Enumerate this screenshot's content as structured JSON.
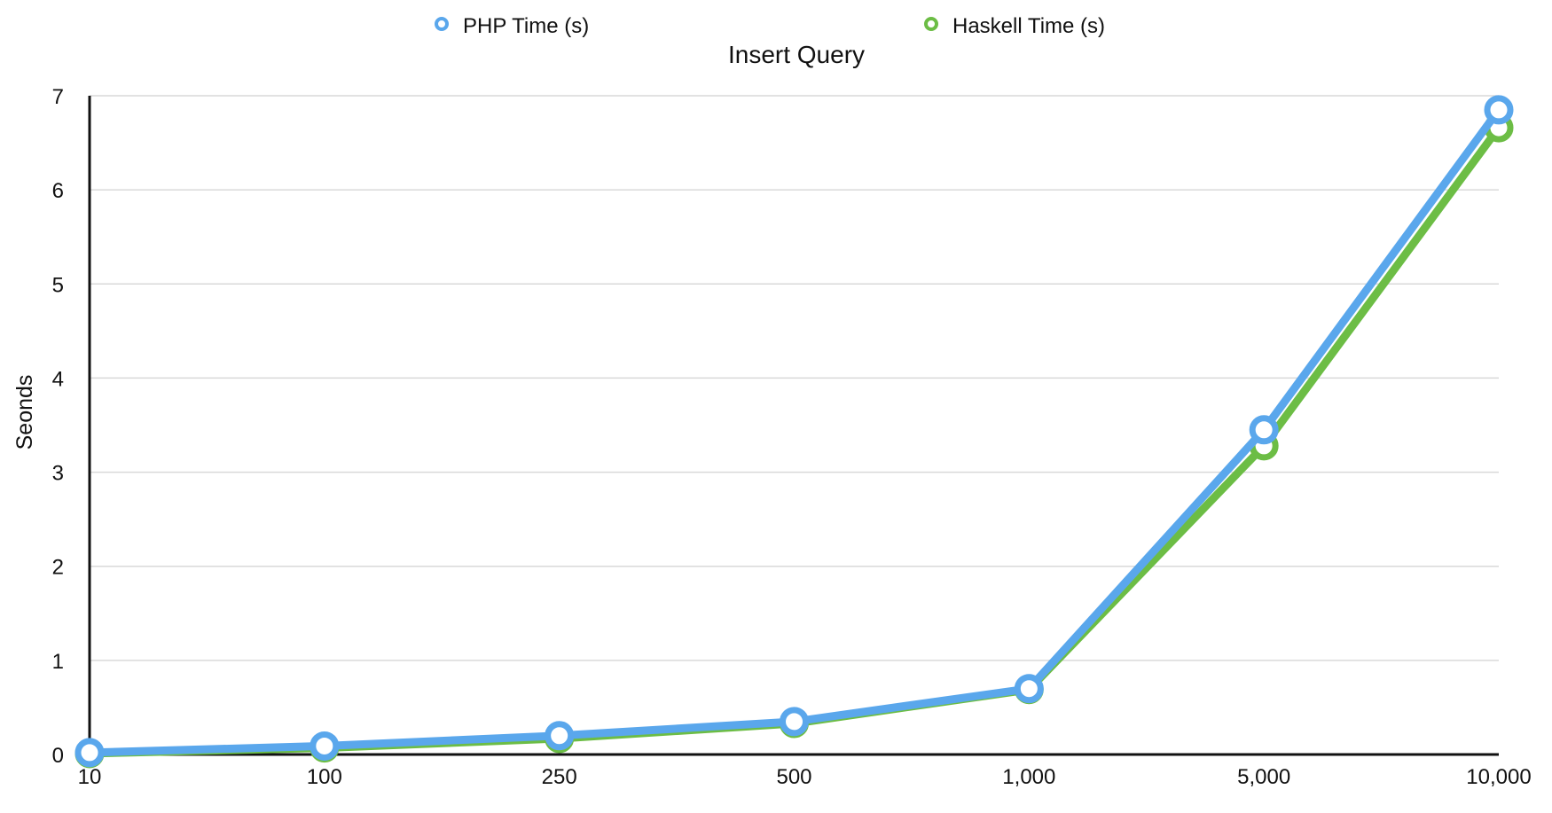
{
  "chart_data": {
    "type": "line",
    "title": "Insert Query",
    "xlabel": "",
    "ylabel": "Seonds",
    "categories": [
      "10",
      "100",
      "250",
      "500",
      "1,000",
      "5,000",
      "10,000"
    ],
    "ylim": [
      0,
      7
    ],
    "yticks": [
      "0",
      "1",
      "2",
      "3",
      "4",
      "5",
      "6",
      "7"
    ],
    "grid": true,
    "legend_position": "top",
    "series": [
      {
        "name": "PHP Time (s)",
        "color": "#5aa7ec",
        "values": [
          0.02,
          0.09,
          0.2,
          0.35,
          0.7,
          3.45,
          6.85
        ]
      },
      {
        "name": "Haskell Time (s)",
        "color": "#6cbd45",
        "values": [
          0.01,
          0.07,
          0.17,
          0.33,
          0.69,
          3.28,
          6.66
        ]
      }
    ]
  }
}
